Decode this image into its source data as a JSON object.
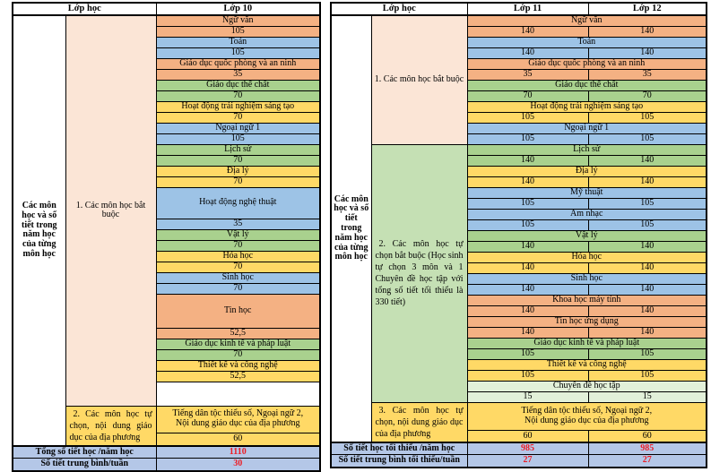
{
  "palette": {
    "salmon": "#F4B183",
    "blue": "#9DC3E6",
    "green": "#A9D18E",
    "yellow": "#FFD966",
    "mint": "#E2F0D9",
    "pink_section": "#FBE5D6",
    "green_section": "#C5E0B4",
    "footer_blue": "#B4C7E7",
    "value_red": "#ED1C24",
    "border": "#000000",
    "white": "#FFFFFF"
  },
  "left_table": {
    "header": [
      "Lớp học",
      "Lớp 10"
    ],
    "row_label": "Các môn học và số tiết trong năm học của từng môn học",
    "sections": [
      {
        "label": "1. Các môn học bắt buộc",
        "label_bg": "pink_section",
        "subjects": [
          {
            "name": "Ngữ văn",
            "values": [
              "105"
            ],
            "color": "salmon"
          },
          {
            "name": "Toán",
            "values": [
              "105"
            ],
            "color": "blue"
          },
          {
            "name": "Giáo dục quốc phòng và an ninh",
            "values": [
              "35"
            ],
            "color": "salmon"
          },
          {
            "name": "Giáo dục thể chất",
            "values": [
              "70"
            ],
            "color": "green"
          },
          {
            "name": "Hoạt động trải nghiệm sáng tạo",
            "values": [
              "70"
            ],
            "color": "yellow"
          },
          {
            "name": "Ngoại ngữ 1",
            "values": [
              "105"
            ],
            "color": "blue"
          },
          {
            "name": "Lịch sử",
            "values": [
              "70"
            ],
            "color": "green"
          },
          {
            "name": "Địa lý",
            "values": [
              "70"
            ],
            "color": "yellow"
          },
          {
            "name": "Hoạt động nghệ thuật",
            "values": [
              "35"
            ],
            "color": "blue"
          },
          {
            "name": "Vật lý",
            "values": [
              "70"
            ],
            "color": "green"
          },
          {
            "name": "Hóa học",
            "values": [
              "70"
            ],
            "color": "yellow"
          },
          {
            "name": "Sinh học",
            "values": [
              "70"
            ],
            "color": "blue"
          },
          {
            "name": "Tin học",
            "values": [
              "52,5"
            ],
            "color": "salmon"
          },
          {
            "name": "Giáo dục kinh tế và pháp luật",
            "values": [
              "70"
            ],
            "color": "green"
          },
          {
            "name": "Thiết kế và công nghệ",
            "values": [
              "52,5"
            ],
            "color": "yellow"
          },
          {
            "spacer": true
          }
        ]
      },
      {
        "label": "2. Các môn học tự chọn, nội dung giáo dục của địa phương",
        "label_bg": "yellow",
        "subjects": [
          {
            "name": "Tiếng dân tộc thiểu số, Ngoại ngữ 2,\nNội dung giáo dục của địa phương",
            "values": [
              "60"
            ],
            "color": "yellow"
          }
        ]
      }
    ],
    "footer": [
      {
        "label": "Tổng số tiết học /năm học",
        "values": [
          "1110"
        ]
      },
      {
        "label": "Số tiết trung bình/tuần",
        "values": [
          "30"
        ]
      }
    ]
  },
  "right_table": {
    "header": [
      "Lớp học",
      "Lớp 11",
      "Lớp 12"
    ],
    "row_label": "Các môn học và số tiết trong năm học của từng môn học",
    "sections": [
      {
        "label": "1. Các môn học bắt buộc",
        "label_bg": "pink_section",
        "subjects": [
          {
            "name": "Ngữ văn",
            "values": [
              "140",
              "140"
            ],
            "color": "salmon"
          },
          {
            "name": "Toán",
            "values": [
              "140",
              "140"
            ],
            "color": "blue"
          },
          {
            "name": "Giáo dục quốc phòng và an ninh",
            "values": [
              "35",
              "35"
            ],
            "color": "salmon"
          },
          {
            "name": "Giáo dục thể chất",
            "values": [
              "70",
              "70"
            ],
            "color": "green"
          },
          {
            "name": "Hoạt động trải nghiệm sáng tạo",
            "values": [
              "105",
              "105"
            ],
            "color": "yellow"
          },
          {
            "name": "Ngoại ngữ 1",
            "values": [
              "105",
              "105"
            ],
            "color": "blue"
          }
        ]
      },
      {
        "label": "2. Các môn học tự chọn bắt buộc (Học sinh tự chọn 3 môn và 1 Chuyên đề học tập với tổng số tiết tối thiểu là 330 tiết)",
        "label_bg": "green_section",
        "subjects": [
          {
            "name": "Lịch sử",
            "values": [
              "140",
              "140"
            ],
            "color": "green"
          },
          {
            "name": "Địa lý",
            "values": [
              "140",
              "140"
            ],
            "color": "yellow"
          },
          {
            "name": "Mỹ thuật",
            "values": [
              "105",
              "105"
            ],
            "color": "blue"
          },
          {
            "name": "Âm nhạc",
            "values": [
              "105",
              "105"
            ],
            "color": "blue"
          },
          {
            "name": "Vật lý",
            "values": [
              "140",
              "140"
            ],
            "color": "green"
          },
          {
            "name": "Hóa học",
            "values": [
              "140",
              "140"
            ],
            "color": "yellow"
          },
          {
            "name": "Sinh học",
            "values": [
              "140",
              "140"
            ],
            "color": "blue"
          },
          {
            "name": "Khoa học máy tính",
            "values": [
              "140",
              "140"
            ],
            "color": "salmon"
          },
          {
            "name": "Tin học ứng dụng",
            "values": [
              "140",
              "140"
            ],
            "color": "salmon"
          },
          {
            "name": "Giáo dục kinh tế và pháp luật",
            "values": [
              "105",
              "105"
            ],
            "color": "green"
          },
          {
            "name": "Thiết kế và công nghệ",
            "values": [
              "105",
              "105"
            ],
            "color": "yellow"
          },
          {
            "name": "Chuyên đề học tập",
            "values": [
              "15",
              "15"
            ],
            "color": "mint"
          }
        ]
      },
      {
        "label": "3. Các môn học tự chọn, nội dung giáo dục của địa phương",
        "label_bg": "yellow",
        "subjects": [
          {
            "name": "Tiếng dân tộc thiểu số, Ngoại ngữ 2,\nNội dung giáo dục của địa phương",
            "values": [
              "60",
              "60"
            ],
            "color": "yellow"
          }
        ]
      }
    ],
    "footer": [
      {
        "label": "Số tiết học tối thiểu /năm học",
        "values": [
          "985",
          "985"
        ]
      },
      {
        "label": "Số tiết trung bình tối thiểu/tuần",
        "values": [
          "27",
          "27"
        ]
      }
    ]
  }
}
